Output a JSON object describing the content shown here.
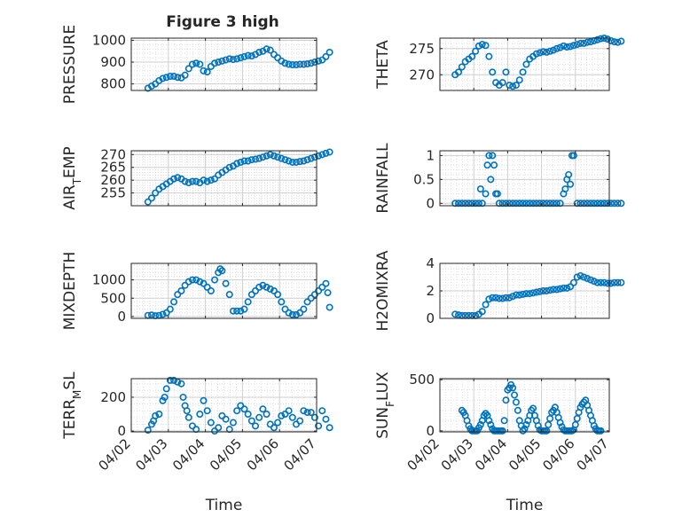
{
  "figure": {
    "title": "Figure 3 high",
    "marker_color": "#0072BD",
    "grid": true,
    "minor_grid": true
  },
  "chart_data": [
    {
      "type": "scatter",
      "ylabel": "PRESSURE",
      "ylim": [
        770,
        1010
      ],
      "yticks": [
        800,
        900,
        1000
      ],
      "ytick_labels": [
        "800",
        "900",
        "1000"
      ],
      "x": [
        0.45,
        0.55,
        0.65,
        0.75,
        0.85,
        0.95,
        1.05,
        1.15,
        1.25,
        1.35,
        1.45,
        1.55,
        1.65,
        1.75,
        1.85,
        1.95,
        2.05,
        2.15,
        2.25,
        2.35,
        2.45,
        2.55,
        2.65,
        2.75,
        2.85,
        2.95,
        3.05,
        3.15,
        3.25,
        3.35,
        3.45,
        3.55,
        3.65,
        3.75,
        3.85,
        3.95,
        4.05,
        4.15,
        4.25,
        4.35,
        4.45,
        4.55,
        4.65,
        4.75,
        4.85,
        4.95,
        5.05,
        5.15,
        5.25,
        5.35
      ],
      "y": [
        780,
        790,
        800,
        815,
        825,
        830,
        835,
        835,
        830,
        828,
        840,
        870,
        890,
        895,
        890,
        860,
        855,
        880,
        895,
        900,
        905,
        910,
        915,
        912,
        915,
        920,
        925,
        930,
        928,
        935,
        945,
        950,
        960,
        955,
        935,
        920,
        905,
        895,
        890,
        888,
        888,
        890,
        890,
        892,
        895,
        900,
        905,
        910,
        925,
        945
      ]
    },
    {
      "type": "scatter",
      "ylabel": "THETA",
      "ylim": [
        267,
        277
      ],
      "yticks": [
        270,
        275
      ],
      "ytick_labels": [
        "270",
        "275"
      ],
      "x": [
        0.45,
        0.55,
        0.65,
        0.75,
        0.85,
        0.95,
        1.05,
        1.15,
        1.25,
        1.35,
        1.45,
        1.55,
        1.65,
        1.75,
        1.85,
        1.95,
        2.05,
        2.15,
        2.25,
        2.35,
        2.45,
        2.55,
        2.65,
        2.75,
        2.85,
        2.95,
        3.05,
        3.15,
        3.25,
        3.35,
        3.45,
        3.55,
        3.65,
        3.75,
        3.85,
        3.95,
        4.05,
        4.15,
        4.25,
        4.35,
        4.45,
        4.55,
        4.65,
        4.75,
        4.85,
        4.95,
        5.05,
        5.15,
        5.25,
        5.35
      ],
      "y": [
        270,
        270.5,
        271.5,
        272.5,
        273,
        273.5,
        274.5,
        275.5,
        275.8,
        275.6,
        273.5,
        270.5,
        268.5,
        268,
        268.5,
        270.5,
        268,
        267.8,
        268,
        269,
        270.5,
        272,
        273,
        273.5,
        274,
        274.2,
        274.4,
        274.3,
        274.5,
        274.7,
        275,
        275.2,
        275.5,
        275.3,
        275.4,
        275.6,
        275.8,
        276,
        276,
        276.2,
        276.3,
        276.5,
        276.7,
        276.9,
        277,
        276.8,
        276.5,
        276.3,
        276.2,
        276.4
      ]
    },
    {
      "type": "scatter",
      "ylabel": "AIR_TEMP",
      "ylim": [
        250,
        271.5
      ],
      "yticks": [
        255,
        260,
        265,
        270
      ],
      "ytick_labels": [
        "255",
        "260",
        "265",
        "270"
      ],
      "x": [
        0.45,
        0.55,
        0.65,
        0.75,
        0.85,
        0.95,
        1.05,
        1.15,
        1.25,
        1.35,
        1.45,
        1.55,
        1.65,
        1.75,
        1.85,
        1.95,
        2.05,
        2.15,
        2.25,
        2.35,
        2.45,
        2.55,
        2.65,
        2.75,
        2.85,
        2.95,
        3.05,
        3.15,
        3.25,
        3.35,
        3.45,
        3.55,
        3.65,
        3.75,
        3.85,
        3.95,
        4.05,
        4.15,
        4.25,
        4.35,
        4.45,
        4.55,
        4.65,
        4.75,
        4.85,
        4.95,
        5.05,
        5.15,
        5.25,
        5.35
      ],
      "y": [
        251.5,
        253,
        255,
        256.5,
        257.5,
        258.5,
        259.5,
        260.5,
        261,
        260.5,
        259.5,
        259,
        259.5,
        259.5,
        259,
        260,
        259.5,
        260,
        260.5,
        262,
        263,
        264,
        265,
        265.5,
        266.5,
        267,
        267.5,
        267.5,
        268,
        268.2,
        268.5,
        269,
        269.5,
        270,
        269.5,
        269,
        268.5,
        268,
        267.5,
        267,
        267,
        267.3,
        267.5,
        268,
        268.5,
        269,
        269.5,
        270,
        270.5,
        271
      ]
    },
    {
      "type": "scatter",
      "ylabel": "RAINFALL",
      "ylim": [
        -0.05,
        1.1
      ],
      "yticks": [
        0,
        0.5,
        1
      ],
      "ytick_labels": [
        "0",
        "0.5",
        "1"
      ],
      "x": [
        0.45,
        0.55,
        0.65,
        0.75,
        0.85,
        0.95,
        1.05,
        1.15,
        1.2,
        1.25,
        1.35,
        1.4,
        1.45,
        1.5,
        1.55,
        1.6,
        1.65,
        1.7,
        1.75,
        1.85,
        1.95,
        2.05,
        2.15,
        2.25,
        2.35,
        2.45,
        2.55,
        2.65,
        2.75,
        2.85,
        2.95,
        3.05,
        3.15,
        3.25,
        3.35,
        3.45,
        3.55,
        3.65,
        3.7,
        3.75,
        3.8,
        3.85,
        3.9,
        3.95,
        4.05,
        4.15,
        4.25,
        4.35,
        4.45,
        4.55,
        4.65,
        4.75,
        4.85,
        4.95,
        5.05,
        5.15,
        5.25,
        5.35
      ],
      "y": [
        0,
        0,
        0,
        0,
        0,
        0,
        0,
        0,
        0.3,
        0,
        0.2,
        0.8,
        1,
        0.5,
        1,
        0.8,
        0.2,
        0.2,
        0,
        0,
        0,
        0,
        0,
        0,
        0,
        0,
        0,
        0,
        0,
        0,
        0,
        0,
        0,
        0,
        0,
        0,
        0,
        0.2,
        0.3,
        0.5,
        0.6,
        0.4,
        1,
        1,
        0,
        0,
        0,
        0,
        0,
        0,
        0,
        0,
        0,
        0,
        0,
        0,
        0,
        0
      ]
    },
    {
      "type": "scatter",
      "ylabel": "MIXDEPTH",
      "ylim": [
        -50,
        1450
      ],
      "yticks": [
        0,
        500,
        1000
      ],
      "ytick_labels": [
        "0",
        "500",
        "1000"
      ],
      "x": [
        0.45,
        0.55,
        0.65,
        0.75,
        0.85,
        0.95,
        1.05,
        1.15,
        1.25,
        1.35,
        1.45,
        1.55,
        1.65,
        1.75,
        1.85,
        1.95,
        2.05,
        2.15,
        2.25,
        2.35,
        2.4,
        2.45,
        2.55,
        2.65,
        2.75,
        2.85,
        2.95,
        3.05,
        3.15,
        3.25,
        3.35,
        3.45,
        3.55,
        3.65,
        3.75,
        3.85,
        3.95,
        4.05,
        4.15,
        4.25,
        4.35,
        4.45,
        4.55,
        4.65,
        4.75,
        4.85,
        4.95,
        5.05,
        5.15,
        5.25,
        5.3,
        5.35
      ],
      "y": [
        30,
        40,
        20,
        30,
        60,
        100,
        200,
        400,
        600,
        700,
        850,
        950,
        1000,
        1000,
        950,
        900,
        800,
        700,
        1000,
        1200,
        1300,
        1250,
        900,
        600,
        150,
        150,
        150,
        200,
        400,
        600,
        700,
        800,
        850,
        800,
        750,
        700,
        600,
        400,
        200,
        100,
        50,
        50,
        100,
        200,
        400,
        500,
        600,
        700,
        800,
        900,
        650,
        250
      ]
    },
    {
      "type": "scatter",
      "ylabel": "H2OMIXRA",
      "ylim": [
        0,
        4
      ],
      "yticks": [
        0,
        2,
        4
      ],
      "ytick_labels": [
        "0",
        "2",
        "4"
      ],
      "x": [
        0.45,
        0.55,
        0.65,
        0.75,
        0.85,
        0.95,
        1.05,
        1.15,
        1.25,
        1.35,
        1.45,
        1.55,
        1.65,
        1.75,
        1.85,
        1.95,
        2.05,
        2.15,
        2.25,
        2.35,
        2.45,
        2.55,
        2.65,
        2.75,
        2.85,
        2.95,
        3.05,
        3.15,
        3.25,
        3.35,
        3.45,
        3.55,
        3.65,
        3.75,
        3.85,
        3.95,
        4.05,
        4.15,
        4.25,
        4.35,
        4.45,
        4.55,
        4.65,
        4.75,
        4.85,
        4.95,
        5.05,
        5.15,
        5.25,
        5.35
      ],
      "y": [
        0.3,
        0.25,
        0.2,
        0.2,
        0.2,
        0.2,
        0.2,
        0.3,
        0.5,
        1,
        1.4,
        1.5,
        1.5,
        1.45,
        1.45,
        1.5,
        1.5,
        1.6,
        1.7,
        1.7,
        1.75,
        1.8,
        1.8,
        1.85,
        1.9,
        1.95,
        2,
        2,
        2.05,
        2.1,
        2.1,
        2.15,
        2.2,
        2.2,
        2.3,
        2.6,
        3,
        3.1,
        3,
        2.9,
        2.8,
        2.7,
        2.6,
        2.6,
        2.6,
        2.55,
        2.55,
        2.6,
        2.6,
        2.6
      ]
    },
    {
      "type": "scatter",
      "ylabel": "TERR_MSL",
      "ylim": [
        -5,
        310
      ],
      "yticks": [
        0,
        200
      ],
      "ytick_labels": [
        "0",
        "200"
      ],
      "x": [
        0.45,
        0.55,
        0.6,
        0.65,
        0.75,
        0.85,
        0.9,
        0.95,
        1.05,
        1.15,
        1.25,
        1.35,
        1.4,
        1.45,
        1.5,
        1.55,
        1.65,
        1.75,
        1.85,
        1.95,
        2.05,
        2.15,
        2.25,
        2.35,
        2.45,
        2.55,
        2.65,
        2.75,
        2.85,
        2.95,
        3.05,
        3.15,
        3.25,
        3.35,
        3.45,
        3.55,
        3.65,
        3.75,
        3.85,
        3.95,
        4.05,
        4.15,
        4.25,
        4.35,
        4.45,
        4.55,
        4.65,
        4.75,
        4.85,
        4.95,
        5.05,
        5.15,
        5.25,
        5.35
      ],
      "y": [
        5,
        40,
        60,
        90,
        100,
        180,
        200,
        250,
        300,
        300,
        290,
        280,
        200,
        150,
        120,
        80,
        30,
        10,
        100,
        180,
        120,
        50,
        0,
        20,
        90,
        70,
        10,
        50,
        120,
        150,
        130,
        100,
        60,
        30,
        80,
        130,
        100,
        40,
        20,
        50,
        90,
        100,
        120,
        80,
        40,
        60,
        120,
        110,
        110,
        80,
        30,
        120,
        70,
        20
      ]
    },
    {
      "type": "scatter",
      "ylabel": "SUN_FLUX",
      "ylim": [
        -10,
        510
      ],
      "yticks": [
        0,
        500
      ],
      "ytick_labels": [
        "0",
        "500"
      ],
      "x": [
        0.65,
        0.7,
        0.75,
        0.8,
        0.85,
        0.9,
        0.95,
        1.0,
        1.05,
        1.1,
        1.15,
        1.2,
        1.25,
        1.3,
        1.35,
        1.4,
        1.45,
        1.5,
        1.55,
        1.6,
        1.65,
        1.7,
        1.75,
        1.8,
        1.85,
        1.9,
        1.95,
        2.0,
        2.05,
        2.1,
        2.15,
        2.2,
        2.25,
        2.3,
        2.35,
        2.4,
        2.45,
        2.5,
        2.55,
        2.6,
        2.65,
        2.7,
        2.75,
        2.8,
        2.85,
        2.9,
        2.95,
        3.0,
        3.05,
        3.1,
        3.15,
        3.2,
        3.25,
        3.3,
        3.35,
        3.4,
        3.45,
        3.5,
        3.55,
        3.6,
        3.65,
        3.7,
        3.75,
        3.8,
        3.85,
        3.9,
        3.95,
        4.0,
        4.05,
        4.1,
        4.15,
        4.2,
        4.25,
        4.3,
        4.35,
        4.4,
        4.45,
        4.5,
        4.55,
        4.6,
        4.65,
        4.7,
        4.75
      ],
      "y": [
        200,
        180,
        150,
        100,
        50,
        20,
        0,
        0,
        0,
        0,
        30,
        60,
        100,
        150,
        170,
        150,
        100,
        60,
        20,
        0,
        0,
        0,
        0,
        0,
        0,
        100,
        300,
        400,
        420,
        450,
        420,
        350,
        280,
        200,
        100,
        50,
        0,
        20,
        60,
        100,
        150,
        200,
        220,
        150,
        100,
        50,
        10,
        0,
        0,
        0,
        0,
        60,
        120,
        180,
        200,
        230,
        180,
        130,
        80,
        40,
        10,
        0,
        0,
        0,
        0,
        0,
        10,
        60,
        120,
        180,
        230,
        260,
        280,
        300,
        250,
        200,
        150,
        100,
        50,
        20,
        0,
        0,
        0
      ]
    }
  ],
  "shared_x": {
    "label": "Time",
    "ticks": [
      0,
      1,
      2,
      3,
      4,
      5
    ],
    "tick_labels": [
      "04/02",
      "04/03",
      "04/04",
      "04/05",
      "04/06",
      "04/07"
    ]
  }
}
